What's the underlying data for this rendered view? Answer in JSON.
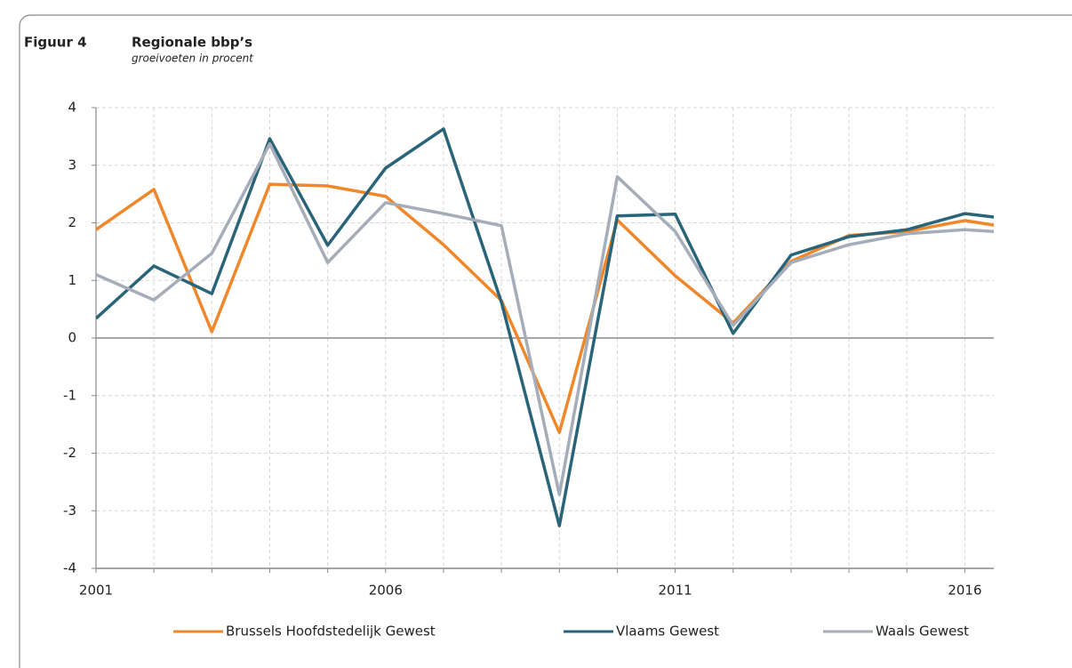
{
  "chart_data": {
    "type": "line",
    "label": "Figuur 4",
    "title": "Regionale bbp’s",
    "subtitle": "groeivoeten in procent",
    "x": [
      2001,
      2002,
      2003,
      2004,
      2005,
      2006,
      2007,
      2008,
      2009,
      2010,
      2011,
      2012,
      2013,
      2014,
      2015,
      2016,
      2017
    ],
    "xlim": [
      2001,
      2016.5
    ],
    "xticks": [
      2001,
      2006,
      2011,
      2016
    ],
    "ylim": [
      -4,
      4
    ],
    "yticks": [
      -4,
      -3,
      -2,
      -1,
      0,
      1,
      2,
      3,
      4
    ],
    "grid": true,
    "legend": "bottom",
    "series": [
      {
        "name": "Brussels Hoofdstedelijk Gewest",
        "color": "#f0872a",
        "values": [
          1.88,
          2.58,
          0.11,
          2.67,
          2.64,
          2.46,
          1.62,
          0.65,
          -1.64,
          2.05,
          1.08,
          0.26,
          1.33,
          1.78,
          1.85,
          2.04,
          1.88
        ]
      },
      {
        "name": "Vlaams Gewest",
        "color": "#2a6478",
        "values": [
          0.34,
          1.25,
          0.77,
          3.46,
          1.61,
          2.95,
          3.63,
          0.62,
          -3.26,
          2.12,
          2.15,
          0.08,
          1.44,
          1.76,
          1.88,
          2.16,
          2.04
        ]
      },
      {
        "name": "Waals Gewest",
        "color": "#a5adb8",
        "values": [
          1.1,
          0.66,
          1.47,
          3.37,
          1.31,
          2.35,
          2.16,
          1.95,
          -2.72,
          2.8,
          1.85,
          0.22,
          1.31,
          1.62,
          1.81,
          1.88,
          1.82
        ]
      }
    ]
  }
}
